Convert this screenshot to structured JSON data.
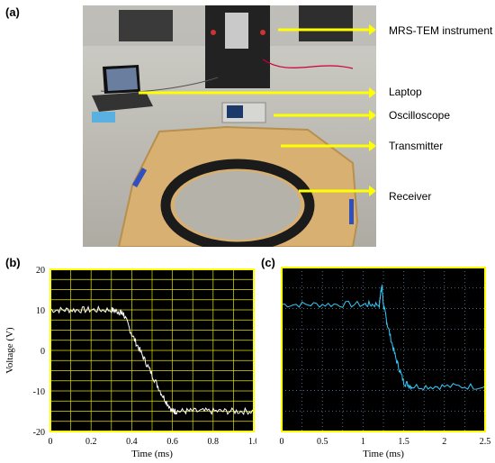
{
  "figure": {
    "panel_labels": [
      "(a)",
      "(b)",
      "(c)"
    ],
    "callouts": [
      "MRS-TEM instrument",
      "Laptop",
      "Oscilloscope",
      "Transmitter",
      "Receiver"
    ],
    "arrow_color": "#ffff00",
    "photo_description_colors": {
      "floor": "#b9b6ad",
      "board": "#d8b071",
      "coil": "#1b1b1b"
    }
  },
  "chart_data": [
    {
      "type": "line",
      "panel": "(b)",
      "xlabel": "Time (ms)",
      "ylabel": "Voltage (V)",
      "xlim": [
        0,
        1.0
      ],
      "ylim": [
        -20,
        20
      ],
      "xticks": [
        "0",
        "0.2",
        "0.4",
        "0.6",
        "0.8",
        "1.0"
      ],
      "yticks": [
        "20",
        "10",
        "0",
        "-10",
        "-20"
      ],
      "grid": true,
      "background": "#000000",
      "grid_color": "#e0e000",
      "frame_color": "#ffff00",
      "series": [
        {
          "color": "#ffffff",
          "x": [
            0,
            0.1,
            0.2,
            0.3,
            0.34,
            0.36,
            0.4,
            0.45,
            0.5,
            0.55,
            0.6,
            0.62,
            0.7,
            0.8,
            0.9,
            1.0
          ],
          "y": [
            10,
            10,
            10,
            10,
            9.5,
            9,
            4,
            -1,
            -6,
            -11,
            -15,
            -15,
            -15,
            -15,
            -15,
            -15
          ]
        }
      ]
    },
    {
      "type": "line",
      "panel": "(c)",
      "xlabel": "Time (ms)",
      "ylabel": "",
      "xlim": [
        0,
        2.5
      ],
      "ylim": [
        -20,
        20
      ],
      "xticks": [
        "0",
        "0.5",
        "1",
        "1.5",
        "2",
        "2.5"
      ],
      "grid": true,
      "background": "#000000",
      "grid_color": "#6a8fb5",
      "frame_color": "#ffff00",
      "series": [
        {
          "color": "#33ccff",
          "x": [
            0,
            0.5,
            1.0,
            1.2,
            1.23,
            1.25,
            1.3,
            1.4,
            1.5,
            1.6,
            2.0,
            2.5
          ],
          "y": [
            11,
            11,
            11,
            11,
            16,
            11,
            6,
            -2,
            -8,
            -9,
            -9,
            -9
          ]
        }
      ]
    }
  ]
}
